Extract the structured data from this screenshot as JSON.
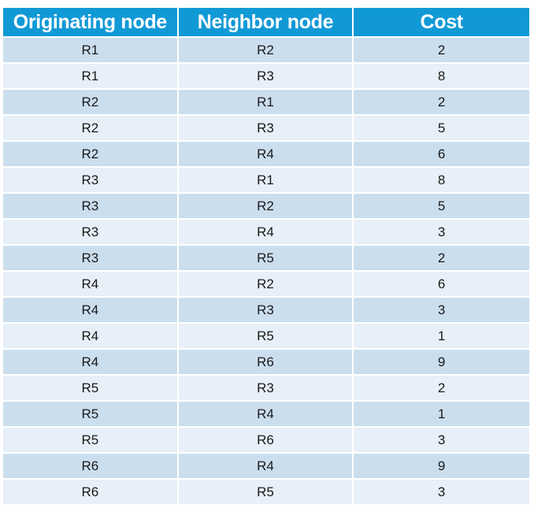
{
  "table": {
    "headers": [
      "Originating node",
      "Neighbor node",
      "Cost"
    ],
    "rows": [
      [
        "R1",
        "R2",
        "2"
      ],
      [
        "R1",
        "R3",
        "8"
      ],
      [
        "R2",
        "R1",
        "2"
      ],
      [
        "R2",
        "R3",
        "5"
      ],
      [
        "R2",
        "R4",
        "6"
      ],
      [
        "R3",
        "R1",
        "8"
      ],
      [
        "R3",
        "R2",
        "5"
      ],
      [
        "R3",
        "R4",
        "3"
      ],
      [
        "R3",
        "R5",
        "2"
      ],
      [
        "R4",
        "R2",
        "6"
      ],
      [
        "R4",
        "R3",
        "3"
      ],
      [
        "R4",
        "R5",
        "1"
      ],
      [
        "R4",
        "R6",
        "9"
      ],
      [
        "R5",
        "R3",
        "2"
      ],
      [
        "R5",
        "R4",
        "1"
      ],
      [
        "R5",
        "R6",
        "3"
      ],
      [
        "R6",
        "R4",
        "9"
      ],
      [
        "R6",
        "R5",
        "3"
      ]
    ]
  },
  "colors": {
    "header_bg": "#1199d6",
    "header_text": "#ffffff",
    "row_odd_bg": "#cbdeee",
    "row_even_bg": "#e7eff8"
  }
}
